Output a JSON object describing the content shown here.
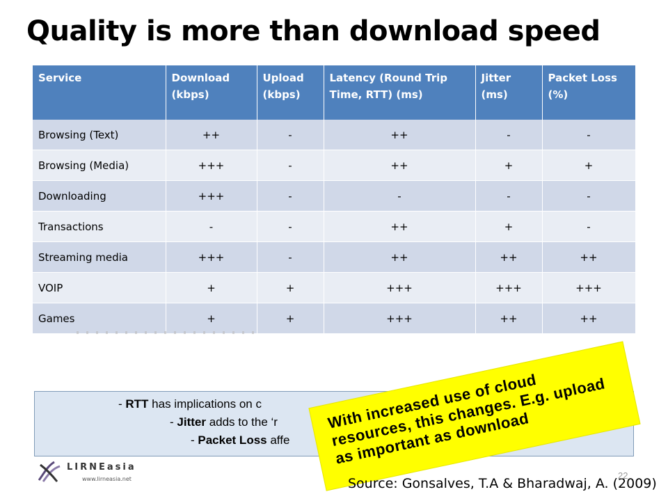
{
  "slide": {
    "title": "Quality is more than download speed",
    "page_number": "22"
  },
  "table": {
    "headers": [
      "Service",
      "Download (kbps)",
      "Upload (kbps)",
      "Latency (Round Trip Time, RTT) (ms)",
      "Jitter (ms)",
      "Packet Loss (%)"
    ],
    "rows": [
      [
        "Browsing (Text)",
        "++",
        "-",
        "++",
        "-",
        "-"
      ],
      [
        "Browsing (Media)",
        "+++",
        "-",
        "++",
        "+",
        "+"
      ],
      [
        "Downloading",
        "+++",
        "-",
        "-",
        "-",
        "-"
      ],
      [
        "Transactions",
        "-",
        "-",
        "++",
        "+",
        "-"
      ],
      [
        "Streaming media",
        "+++",
        "-",
        "++",
        "++",
        "++"
      ],
      [
        "VOIP",
        "+",
        "+",
        "+++",
        "+++",
        "+++"
      ],
      [
        "Games",
        "+",
        "+",
        "+++",
        "++",
        "++"
      ]
    ]
  },
  "notes": {
    "n1_prefix": "- ",
    "n1_bold": "RTT",
    "n1_rest": " has implications on c",
    "n2_prefix": "- ",
    "n2_bold": "Jitter",
    "n2_rest": " adds to the ‘r",
    "n3_prefix": "- ",
    "n3_bold": "Packet Loss",
    "n3_rest": " affe"
  },
  "callout": {
    "text": "With increased use of cloud resources, this changes.  E.g. upload as important as download"
  },
  "logo": {
    "name": "LIRNEasia",
    "url": "www.lirneasia.net"
  },
  "source": {
    "text": "Source: Gonsalves, T.A & Bharadwaj, A. (2009)"
  }
}
